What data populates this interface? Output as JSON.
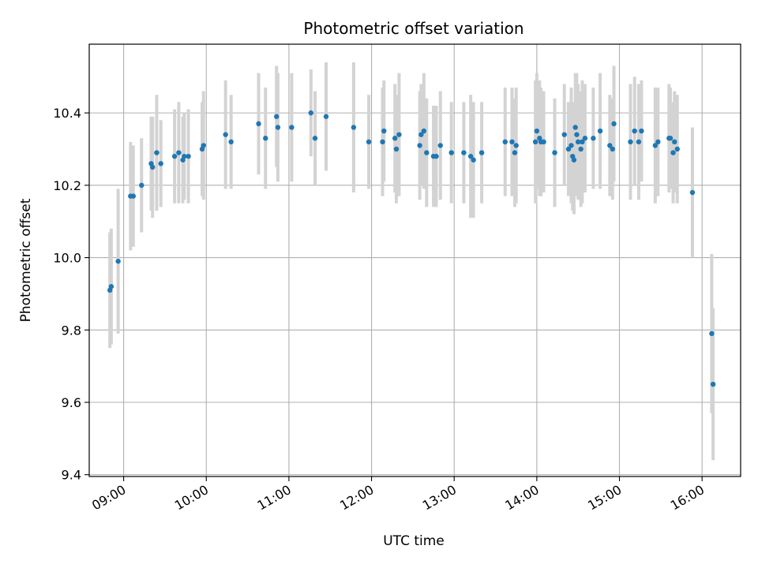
{
  "chart_data": {
    "type": "scatter",
    "title": "Photometric offset variation",
    "xlabel": "UTC time",
    "ylabel": "Photometric offset",
    "x_unit": "UTC time (HH:MM)",
    "xlim": [
      "08:35",
      "16:28"
    ],
    "ylim": [
      9.395,
      10.59
    ],
    "x_ticks": [
      "09:00",
      "10:00",
      "11:00",
      "12:00",
      "13:00",
      "14:00",
      "15:00",
      "16:00"
    ],
    "y_ticks": [
      9.4,
      9.6,
      9.8,
      10.0,
      10.2,
      10.4
    ],
    "y_tick_labels": [
      "9.4",
      "9.6",
      "9.8",
      "10.0",
      "10.2",
      "10.4"
    ],
    "grid": true,
    "point_color": "#1f77b4",
    "errorbar_color": "#d3d3d3",
    "series": [
      {
        "points": [
          {
            "t": "08:50",
            "y": 9.91,
            "err": 0.16
          },
          {
            "t": "08:51",
            "y": 9.92,
            "err": 0.16
          },
          {
            "t": "08:56",
            "y": 9.99,
            "err": 0.2
          },
          {
            "t": "09:05",
            "y": 10.17,
            "err": 0.15
          },
          {
            "t": "09:07",
            "y": 10.17,
            "err": 0.14
          },
          {
            "t": "09:13",
            "y": 10.2,
            "err": 0.13
          },
          {
            "t": "09:20",
            "y": 10.26,
            "err": 0.13
          },
          {
            "t": "09:21",
            "y": 10.25,
            "err": 0.14
          },
          {
            "t": "09:24",
            "y": 10.29,
            "err": 0.16
          },
          {
            "t": "09:27",
            "y": 10.26,
            "err": 0.12
          },
          {
            "t": "09:37",
            "y": 10.28,
            "err": 0.13
          },
          {
            "t": "09:40",
            "y": 10.29,
            "err": 0.14
          },
          {
            "t": "09:43",
            "y": 10.27,
            "err": 0.12
          },
          {
            "t": "09:44",
            "y": 10.28,
            "err": 0.12
          },
          {
            "t": "09:47",
            "y": 10.28,
            "err": 0.13
          },
          {
            "t": "09:57",
            "y": 10.3,
            "err": 0.13
          },
          {
            "t": "09:58",
            "y": 10.31,
            "err": 0.15
          },
          {
            "t": "10:14",
            "y": 10.34,
            "err": 0.15
          },
          {
            "t": "10:18",
            "y": 10.32,
            "err": 0.13
          },
          {
            "t": "10:38",
            "y": 10.37,
            "err": 0.14
          },
          {
            "t": "10:43",
            "y": 10.33,
            "err": 0.14
          },
          {
            "t": "10:51",
            "y": 10.39,
            "err": 0.14
          },
          {
            "t": "10:52",
            "y": 10.36,
            "err": 0.15
          },
          {
            "t": "11:02",
            "y": 10.36,
            "err": 0.15
          },
          {
            "t": "11:16",
            "y": 10.4,
            "err": 0.12
          },
          {
            "t": "11:19",
            "y": 10.33,
            "err": 0.13
          },
          {
            "t": "11:27",
            "y": 10.39,
            "err": 0.15
          },
          {
            "t": "11:47",
            "y": 10.36,
            "err": 0.18
          },
          {
            "t": "11:58",
            "y": 10.32,
            "err": 0.13
          },
          {
            "t": "12:08",
            "y": 10.32,
            "err": 0.15
          },
          {
            "t": "12:09",
            "y": 10.35,
            "err": 0.14
          },
          {
            "t": "12:17",
            "y": 10.33,
            "err": 0.15
          },
          {
            "t": "12:18",
            "y": 10.3,
            "err": 0.15
          },
          {
            "t": "12:20",
            "y": 10.34,
            "err": 0.17
          },
          {
            "t": "12:35",
            "y": 10.31,
            "err": 0.15
          },
          {
            "t": "12:36",
            "y": 10.34,
            "err": 0.14
          },
          {
            "t": "12:38",
            "y": 10.35,
            "err": 0.16
          },
          {
            "t": "12:40",
            "y": 10.29,
            "err": 0.15
          },
          {
            "t": "12:45",
            "y": 10.28,
            "err": 0.14
          },
          {
            "t": "12:47",
            "y": 10.28,
            "err": 0.14
          },
          {
            "t": "12:50",
            "y": 10.31,
            "err": 0.15
          },
          {
            "t": "12:58",
            "y": 10.29,
            "err": 0.14
          },
          {
            "t": "13:07",
            "y": 10.29,
            "err": 0.14
          },
          {
            "t": "13:12",
            "y": 10.28,
            "err": 0.17
          },
          {
            "t": "13:14",
            "y": 10.27,
            "err": 0.16
          },
          {
            "t": "13:20",
            "y": 10.29,
            "err": 0.14
          },
          {
            "t": "13:37",
            "y": 10.32,
            "err": 0.15
          },
          {
            "t": "13:42",
            "y": 10.32,
            "err": 0.15
          },
          {
            "t": "13:44",
            "y": 10.29,
            "err": 0.15
          },
          {
            "t": "13:45",
            "y": 10.31,
            "err": 0.16
          },
          {
            "t": "13:59",
            "y": 10.32,
            "err": 0.17
          },
          {
            "t": "14:00",
            "y": 10.35,
            "err": 0.16
          },
          {
            "t": "14:02",
            "y": 10.33,
            "err": 0.16
          },
          {
            "t": "14:03",
            "y": 10.32,
            "err": 0.15
          },
          {
            "t": "14:05",
            "y": 10.32,
            "err": 0.14
          },
          {
            "t": "14:13",
            "y": 10.29,
            "err": 0.15
          },
          {
            "t": "14:20",
            "y": 10.34,
            "err": 0.14
          },
          {
            "t": "14:23",
            "y": 10.3,
            "err": 0.13
          },
          {
            "t": "14:25",
            "y": 10.31,
            "err": 0.16
          },
          {
            "t": "14:26",
            "y": 10.28,
            "err": 0.15
          },
          {
            "t": "14:27",
            "y": 10.27,
            "err": 0.15
          },
          {
            "t": "14:28",
            "y": 10.36,
            "err": 0.15
          },
          {
            "t": "14:29",
            "y": 10.34,
            "err": 0.17
          },
          {
            "t": "14:30",
            "y": 10.32,
            "err": 0.16
          },
          {
            "t": "14:32",
            "y": 10.3,
            "err": 0.16
          },
          {
            "t": "14:33",
            "y": 10.32,
            "err": 0.17
          },
          {
            "t": "14:35",
            "y": 10.33,
            "err": 0.15
          },
          {
            "t": "14:41",
            "y": 10.33,
            "err": 0.14
          },
          {
            "t": "14:46",
            "y": 10.35,
            "err": 0.16
          },
          {
            "t": "14:53",
            "y": 10.31,
            "err": 0.14
          },
          {
            "t": "14:55",
            "y": 10.3,
            "err": 0.14
          },
          {
            "t": "14:56",
            "y": 10.37,
            "err": 0.16
          },
          {
            "t": "15:08",
            "y": 10.32,
            "err": 0.16
          },
          {
            "t": "15:11",
            "y": 10.35,
            "err": 0.15
          },
          {
            "t": "15:14",
            "y": 10.32,
            "err": 0.16
          },
          {
            "t": "15:16",
            "y": 10.35,
            "err": 0.14
          },
          {
            "t": "15:26",
            "y": 10.31,
            "err": 0.16
          },
          {
            "t": "15:28",
            "y": 10.32,
            "err": 0.15
          },
          {
            "t": "15:36",
            "y": 10.33,
            "err": 0.15
          },
          {
            "t": "15:37",
            "y": 10.33,
            "err": 0.14
          },
          {
            "t": "15:39",
            "y": 10.29,
            "err": 0.14
          },
          {
            "t": "15:40",
            "y": 10.32,
            "err": 0.14
          },
          {
            "t": "15:42",
            "y": 10.3,
            "err": 0.15
          },
          {
            "t": "15:53",
            "y": 10.18,
            "err": 0.18
          },
          {
            "t": "16:07",
            "y": 9.79,
            "err": 0.22
          },
          {
            "t": "16:08",
            "y": 9.65,
            "err": 0.21
          }
        ]
      }
    ]
  }
}
